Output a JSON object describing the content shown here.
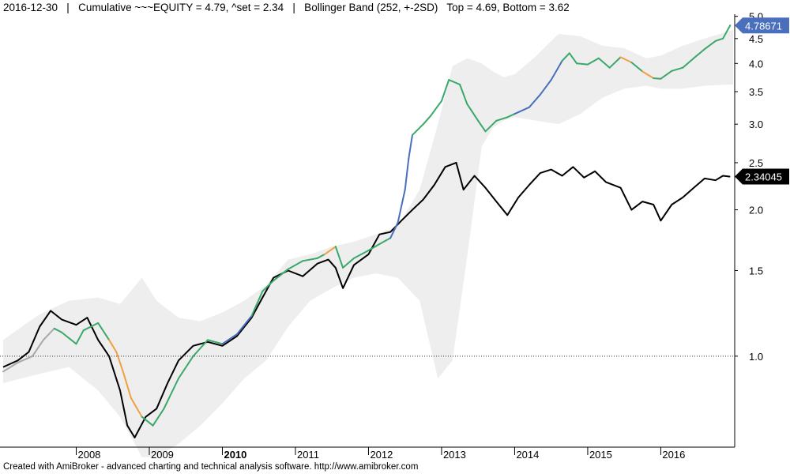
{
  "header": {
    "text": "2016-12-30   |   Cumulative ~~~EQUITY = 4.79, ^set = 2.34   |   Bollinger Band (252, +-2SD)   Top = 4.69, Bottom = 3.62"
  },
  "footer": {
    "text": "Created with AmiBroker - advanced charting and technical analysis software. http://www.amibroker.com"
  },
  "colors": {
    "equity_green": "#3aa86a",
    "equity_blue": "#4a6fbd",
    "equity_orange": "#f0a040",
    "equity_gray": "#a8a8a8",
    "benchmark": "#000000",
    "band_fill": "#eeeeee",
    "equity_label_bg": "#4a6fbd",
    "benchmark_label_bg": "#000000"
  },
  "chart_data": {
    "type": "line",
    "title": "Cumulative ~~~EQUITY = 4.79, ^set = 2.34",
    "xlabel": "",
    "ylabel": "",
    "yscale": "log",
    "ylim": [
      0.65,
      5.05
    ],
    "xlim": [
      2007.0,
      2016.99
    ],
    "grid": false,
    "reference_line": 1.0,
    "y_ticks": [
      1.0,
      1.5,
      2.0,
      2.5,
      3.0,
      3.5,
      4.0,
      4.5,
      5.0
    ],
    "y_tick_labels": [
      "1.0",
      "1.5",
      "2.0",
      "2.5",
      "3.0",
      "3.5",
      "4.0",
      "4.5",
      "5.0"
    ],
    "x_ticks": [
      2008,
      2009,
      2010,
      2011,
      2012,
      2013,
      2014,
      2015,
      2016
    ],
    "x_tick_labels": [
      "2008",
      "2009",
      "2010",
      "2011",
      "2012",
      "2013",
      "2014",
      "2015",
      "2016"
    ],
    "x_bold_ticks": [
      "2010"
    ],
    "last_values": {
      "equity": "4.78671",
      "benchmark": "2.34045"
    },
    "series": [
      {
        "name": "EQUITY",
        "x": [
          2007.0,
          2007.2,
          2007.4,
          2007.55,
          2007.7,
          2007.8,
          2008.0,
          2008.1,
          2008.3,
          2008.45,
          2008.55,
          2008.65,
          2008.75,
          2008.9,
          2009.05,
          2009.2,
          2009.4,
          2009.6,
          2009.8,
          2010.0,
          2010.2,
          2010.4,
          2010.55,
          2010.7,
          2010.9,
          2011.1,
          2011.3,
          2011.4,
          2011.55,
          2011.65,
          2011.8,
          2012.0,
          2012.15,
          2012.3,
          2012.4,
          2012.5,
          2012.55,
          2012.6,
          2012.75,
          2012.85,
          2013.0,
          2013.1,
          2013.25,
          2013.35,
          2013.5,
          2013.6,
          2013.75,
          2013.9,
          2014.0,
          2014.2,
          2014.35,
          2014.5,
          2014.65,
          2014.75,
          2014.85,
          2015.0,
          2015.15,
          2015.3,
          2015.45,
          2015.6,
          2015.75,
          2015.9,
          2016.0,
          2016.15,
          2016.3,
          2016.45,
          2016.6,
          2016.75,
          2016.85,
          2016.95
        ],
        "y": [
          0.93,
          0.97,
          1.0,
          1.08,
          1.14,
          1.12,
          1.06,
          1.13,
          1.17,
          1.08,
          1.02,
          0.92,
          0.82,
          0.75,
          0.72,
          0.78,
          0.9,
          1.0,
          1.08,
          1.06,
          1.11,
          1.21,
          1.36,
          1.43,
          1.51,
          1.57,
          1.59,
          1.62,
          1.68,
          1.52,
          1.59,
          1.65,
          1.7,
          1.75,
          1.88,
          2.2,
          2.55,
          2.85,
          3.0,
          3.12,
          3.35,
          3.7,
          3.62,
          3.3,
          3.05,
          2.9,
          3.05,
          3.1,
          3.15,
          3.25,
          3.45,
          3.7,
          4.05,
          4.2,
          4.0,
          3.98,
          4.1,
          3.92,
          4.12,
          4.02,
          3.85,
          3.73,
          3.72,
          3.86,
          3.92,
          4.1,
          4.28,
          4.45,
          4.5,
          4.79
        ],
        "colors": [
          "gray",
          "gray",
          "gray",
          "gray",
          "gray",
          "green",
          "green",
          "green",
          "green",
          "green",
          "orange",
          "orange",
          "orange",
          "orange",
          "green",
          "green",
          "green",
          "green",
          "green",
          "green",
          "blue",
          "blue",
          "green",
          "green",
          "green",
          "green",
          "green",
          "green",
          "orange",
          "green",
          "green",
          "green",
          "green",
          "green",
          "blue",
          "blue",
          "blue",
          "blue",
          "green",
          "green",
          "green",
          "green",
          "green",
          "green",
          "green",
          "green",
          "green",
          "green",
          "green",
          "blue",
          "blue",
          "blue",
          "blue",
          "green",
          "green",
          "green",
          "green",
          "green",
          "green",
          "orange",
          "green",
          "orange",
          "green",
          "green",
          "green",
          "green",
          "green",
          "green",
          "green",
          "green"
        ]
      },
      {
        "name": "^set",
        "x": [
          2007.0,
          2007.2,
          2007.35,
          2007.5,
          2007.65,
          2007.8,
          2008.0,
          2008.15,
          2008.3,
          2008.45,
          2008.6,
          2008.7,
          2008.8,
          2008.95,
          2009.1,
          2009.25,
          2009.4,
          2009.6,
          2009.8,
          2010.0,
          2010.2,
          2010.4,
          2010.55,
          2010.7,
          2010.9,
          2011.1,
          2011.3,
          2011.45,
          2011.55,
          2011.65,
          2011.8,
          2012.0,
          2012.15,
          2012.3,
          2012.45,
          2012.6,
          2012.75,
          2012.9,
          2013.05,
          2013.2,
          2013.3,
          2013.45,
          2013.6,
          2013.75,
          2013.9,
          2014.05,
          2014.2,
          2014.35,
          2014.5,
          2014.65,
          2014.8,
          2014.95,
          2015.1,
          2015.25,
          2015.45,
          2015.6,
          2015.75,
          2015.9,
          2016.0,
          2016.15,
          2016.3,
          2016.45,
          2016.6,
          2016.75,
          2016.85,
          2016.95
        ],
        "y": [
          0.95,
          0.98,
          1.02,
          1.15,
          1.24,
          1.19,
          1.16,
          1.2,
          1.08,
          1.0,
          0.85,
          0.72,
          0.68,
          0.75,
          0.78,
          0.88,
          0.98,
          1.05,
          1.07,
          1.05,
          1.1,
          1.2,
          1.32,
          1.45,
          1.5,
          1.46,
          1.55,
          1.58,
          1.52,
          1.38,
          1.54,
          1.62,
          1.78,
          1.8,
          1.9,
          2.0,
          2.1,
          2.25,
          2.45,
          2.5,
          2.2,
          2.35,
          2.22,
          2.08,
          1.95,
          2.12,
          2.25,
          2.38,
          2.42,
          2.35,
          2.45,
          2.33,
          2.4,
          2.28,
          2.22,
          2.0,
          2.08,
          2.05,
          1.9,
          2.05,
          2.12,
          2.22,
          2.32,
          2.3,
          2.35,
          2.34
        ]
      },
      {
        "name": "Bollinger Band (252, +-2SD)",
        "x": [
          2007.0,
          2007.5,
          2007.9,
          2008.3,
          2008.6,
          2008.9,
          2009.1,
          2009.4,
          2009.7,
          2010.0,
          2010.3,
          2010.6,
          2010.9,
          2011.2,
          2011.5,
          2011.8,
          2012.1,
          2012.4,
          2012.7,
          2012.95,
          2013.15,
          2013.35,
          2013.55,
          2013.7,
          2013.85,
          2014.0,
          2014.3,
          2014.6,
          2014.9,
          2015.2,
          2015.5,
          2015.8,
          2016.0,
          2016.3,
          2016.6,
          2016.99
        ],
        "upper": [
          1.08,
          1.22,
          1.3,
          1.32,
          1.28,
          1.45,
          1.3,
          1.2,
          1.18,
          1.23,
          1.3,
          1.4,
          1.58,
          1.62,
          1.68,
          1.72,
          1.78,
          1.85,
          2.2,
          3.0,
          3.95,
          4.1,
          4.0,
          3.85,
          3.75,
          3.8,
          4.15,
          4.6,
          4.55,
          4.35,
          4.3,
          4.1,
          4.15,
          4.35,
          4.5,
          4.69
        ],
        "lower": [
          0.88,
          0.92,
          0.95,
          0.85,
          0.75,
          0.62,
          0.62,
          0.66,
          0.72,
          0.8,
          0.9,
          0.98,
          1.15,
          1.3,
          1.38,
          1.45,
          1.48,
          1.45,
          1.3,
          0.9,
          0.98,
          1.6,
          2.7,
          2.95,
          3.05,
          3.1,
          3.05,
          3.0,
          3.15,
          3.4,
          3.55,
          3.6,
          3.55,
          3.55,
          3.6,
          3.62
        ]
      }
    ]
  }
}
